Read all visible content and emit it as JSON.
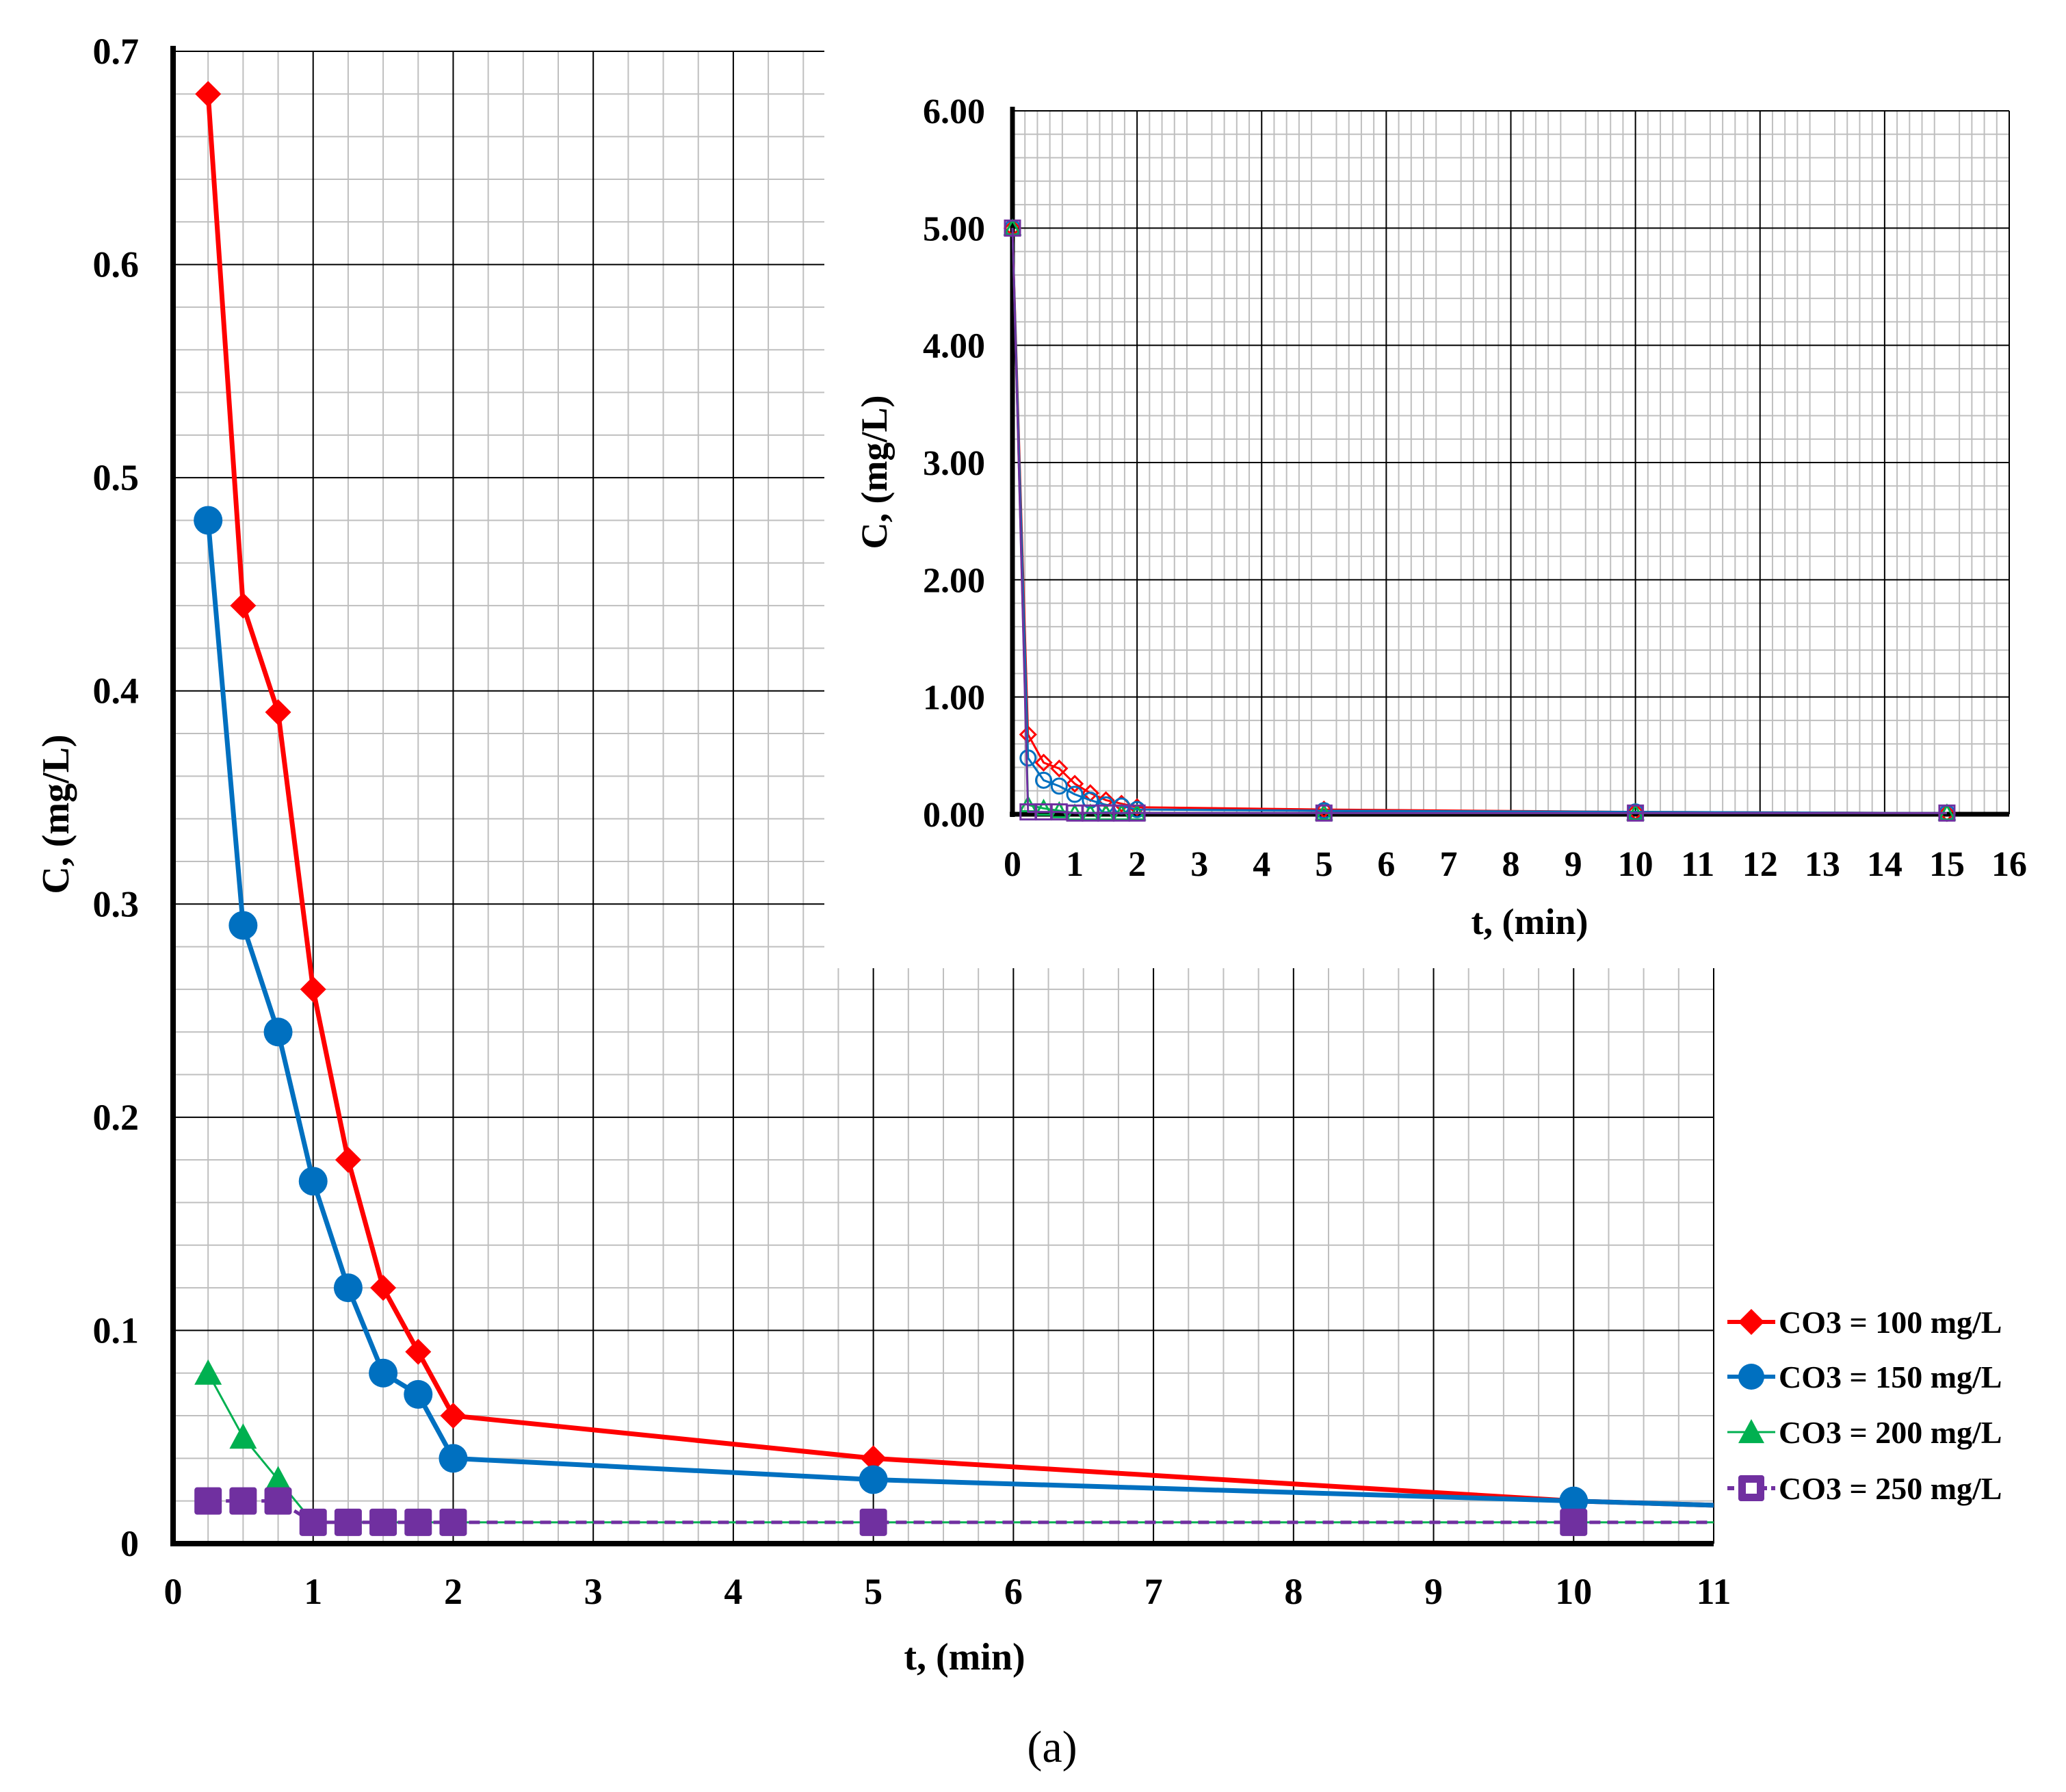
{
  "caption": "(a)",
  "colors": {
    "series_100": "#ff0000",
    "series_150": "#0070c0",
    "series_200": "#00b050",
    "series_250": "#7030a0",
    "major_grid": "#000000",
    "minor_grid": "#bfbfbf"
  },
  "chart_data": [
    {
      "type": "line",
      "title": "",
      "xlabel": "t, (min)",
      "ylabel": "C, (mg/L)",
      "xlim": [
        0,
        11
      ],
      "ylim": [
        0,
        0.7
      ],
      "x_ticks": [
        0,
        1,
        2,
        3,
        4,
        5,
        6,
        7,
        8,
        9,
        10,
        11
      ],
      "x_tick_labels": [
        "0",
        "1",
        "2",
        "3",
        "4",
        "5",
        "6",
        "7",
        "8",
        "9",
        "10",
        "11"
      ],
      "y_ticks": [
        0,
        0.1,
        0.2,
        0.3,
        0.4,
        0.5,
        0.6,
        0.7
      ],
      "y_tick_labels": [
        "0",
        "0.1",
        "0.2",
        "0.3",
        "0.4",
        "0.5",
        "0.6",
        "0.7"
      ],
      "grid": true,
      "legend_position": "right",
      "series": [
        {
          "name": "CO3 = 100 mg/L",
          "marker": "diamond",
          "color_key": "series_100",
          "points": [
            [
              0.25,
              0.68
            ],
            [
              0.5,
              0.44
            ],
            [
              0.75,
              0.39
            ],
            [
              1,
              0.26
            ],
            [
              1.25,
              0.18
            ],
            [
              1.5,
              0.12
            ],
            [
              1.75,
              0.09
            ],
            [
              2,
              0.06
            ],
            [
              5,
              0.04
            ],
            [
              10,
              0.02
            ],
            [
              15,
              0.01
            ]
          ]
        },
        {
          "name": "CO3 = 150 mg/L",
          "marker": "circle",
          "color_key": "series_150",
          "points": [
            [
              0.25,
              0.48
            ],
            [
              0.5,
              0.29
            ],
            [
              0.75,
              0.24
            ],
            [
              1,
              0.17
            ],
            [
              1.25,
              0.12
            ],
            [
              1.5,
              0.08
            ],
            [
              1.75,
              0.07
            ],
            [
              2,
              0.04
            ],
            [
              5,
              0.03
            ],
            [
              10,
              0.02
            ],
            [
              15,
              0.01
            ]
          ]
        },
        {
          "name": "CO3 = 200 mg/L",
          "marker": "triangle",
          "color_key": "series_200",
          "points": [
            [
              0.25,
              0.08
            ],
            [
              0.5,
              0.05
            ],
            [
              0.75,
              0.03
            ],
            [
              1,
              0.01
            ],
            [
              1.25,
              0.01
            ],
            [
              1.5,
              0.01
            ],
            [
              1.75,
              0.01
            ],
            [
              2,
              0.01
            ],
            [
              5,
              0.01
            ],
            [
              10,
              0.01
            ],
            [
              15,
              0.01
            ]
          ]
        },
        {
          "name": "CO3 = 250 mg/L",
          "marker": "square",
          "color_key": "series_250",
          "points": [
            [
              0.25,
              0.02
            ],
            [
              0.5,
              0.02
            ],
            [
              0.75,
              0.02
            ],
            [
              1,
              0.01
            ],
            [
              1.25,
              0.01
            ],
            [
              1.5,
              0.01
            ],
            [
              1.75,
              0.01
            ],
            [
              2,
              0.01
            ],
            [
              5,
              0.01
            ],
            [
              10,
              0.01
            ],
            [
              15,
              0.01
            ]
          ]
        }
      ]
    },
    {
      "type": "line",
      "title": "",
      "xlabel": "t, (min)",
      "ylabel": "C, (mg/L)",
      "xlim": [
        0,
        16
      ],
      "ylim": [
        0,
        6
      ],
      "x_ticks": [
        0,
        1,
        2,
        3,
        4,
        5,
        6,
        7,
        8,
        9,
        10,
        11,
        12,
        13,
        14,
        15,
        16
      ],
      "x_tick_labels": [
        "0",
        "1",
        "2",
        "3",
        "4",
        "5",
        "6",
        "7",
        "8",
        "9",
        "10",
        "11",
        "12",
        "13",
        "14",
        "15",
        "16"
      ],
      "y_ticks": [
        0,
        1,
        2,
        3,
        4,
        5,
        6
      ],
      "y_tick_labels": [
        "0.00",
        "1.00",
        "2.00",
        "3.00",
        "4.00",
        "5.00",
        "6.00"
      ],
      "grid": true,
      "series": [
        {
          "marker": "open-diamond",
          "color_key": "series_100",
          "points": [
            [
              0,
              5
            ],
            [
              0.25,
              0.68
            ],
            [
              0.5,
              0.44
            ],
            [
              0.75,
              0.39
            ],
            [
              1,
              0.26
            ],
            [
              1.25,
              0.18
            ],
            [
              1.5,
              0.12
            ],
            [
              1.75,
              0.09
            ],
            [
              2,
              0.06
            ],
            [
              5,
              0.04
            ],
            [
              10,
              0.02
            ],
            [
              15,
              0.01
            ]
          ]
        },
        {
          "marker": "open-circle",
          "color_key": "series_150",
          "points": [
            [
              0,
              5
            ],
            [
              0.25,
              0.48
            ],
            [
              0.5,
              0.29
            ],
            [
              0.75,
              0.24
            ],
            [
              1,
              0.17
            ],
            [
              1.25,
              0.12
            ],
            [
              1.5,
              0.08
            ],
            [
              1.75,
              0.07
            ],
            [
              2,
              0.04
            ],
            [
              5,
              0.03
            ],
            [
              10,
              0.02
            ],
            [
              15,
              0.01
            ]
          ]
        },
        {
          "marker": "open-triangle",
          "color_key": "series_200",
          "points": [
            [
              0,
              5
            ],
            [
              0.25,
              0.08
            ],
            [
              0.5,
              0.05
            ],
            [
              0.75,
              0.03
            ],
            [
              1,
              0.01
            ],
            [
              1.25,
              0.01
            ],
            [
              1.5,
              0.01
            ],
            [
              1.75,
              0.01
            ],
            [
              2,
              0.01
            ],
            [
              5,
              0.01
            ],
            [
              10,
              0.01
            ],
            [
              15,
              0.01
            ]
          ]
        },
        {
          "marker": "open-square",
          "color_key": "series_250",
          "points": [
            [
              0,
              5
            ],
            [
              0.25,
              0.02
            ],
            [
              0.5,
              0.02
            ],
            [
              0.75,
              0.02
            ],
            [
              1,
              0.01
            ],
            [
              1.25,
              0.01
            ],
            [
              1.5,
              0.01
            ],
            [
              1.75,
              0.01
            ],
            [
              2,
              0.01
            ],
            [
              5,
              0.01
            ],
            [
              10,
              0.01
            ],
            [
              15,
              0.01
            ]
          ]
        }
      ]
    }
  ]
}
